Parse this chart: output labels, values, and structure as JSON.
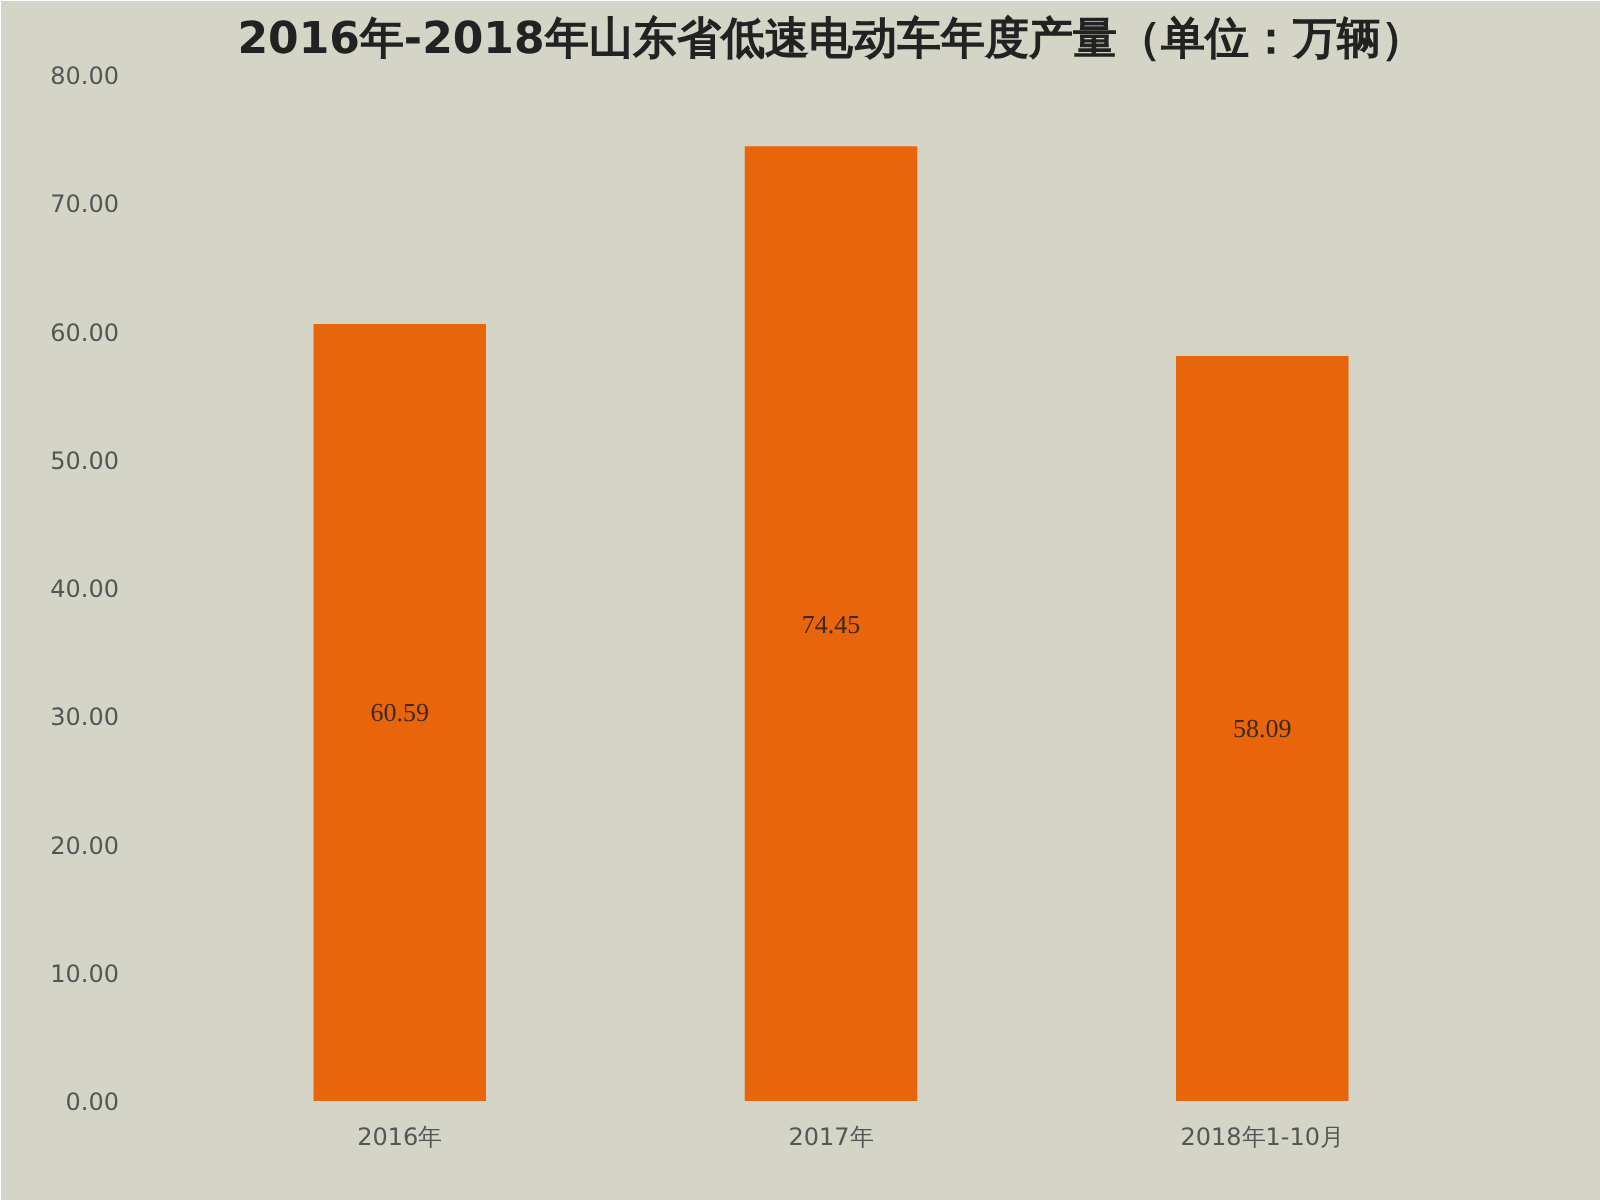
{
  "chart_data": {
    "type": "bar",
    "title": "2016年-2018年山东省低速电动车年度产量（单位：万辆）",
    "categories": [
      "2016年",
      "2017年",
      "2018年1-10月"
    ],
    "values": [
      60.59,
      74.45,
      58.09
    ],
    "value_labels": [
      "60.59",
      "74.45",
      "58.09"
    ],
    "color": "#e8650c",
    "ylim": [
      0,
      80
    ],
    "yticks": [
      {
        "value": 0,
        "label": "0.00"
      },
      {
        "value": 10,
        "label": "10.00"
      },
      {
        "value": 20,
        "label": "20.00"
      },
      {
        "value": 30,
        "label": "30.00"
      },
      {
        "value": 40,
        "label": "40.00"
      },
      {
        "value": 50,
        "label": "50.00"
      },
      {
        "value": 60,
        "label": "60.00"
      },
      {
        "value": 70,
        "label": "70.00"
      },
      {
        "value": 80,
        "label": "80.00"
      }
    ],
    "grid": false
  }
}
